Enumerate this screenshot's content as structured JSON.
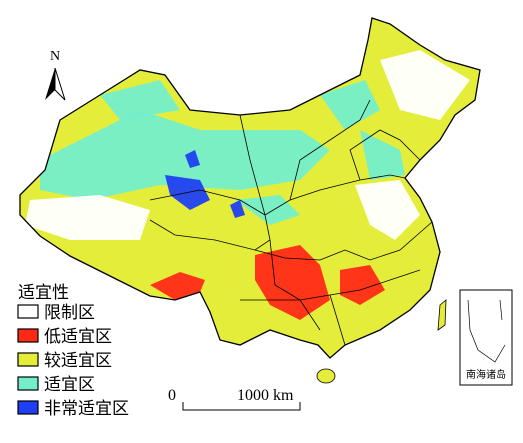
{
  "north_arrow": "N",
  "legend": {
    "title": "适宜性",
    "items": [
      {
        "label": "限制区",
        "color": "#ffffff"
      },
      {
        "label": "低适宜区",
        "color": "#ff2a16"
      },
      {
        "label": "较适宜区",
        "color": "#e4ee3a"
      },
      {
        "label": "适宜区",
        "color": "#74eecb"
      },
      {
        "label": "非常适宜区",
        "color": "#1f3ff2"
      }
    ]
  },
  "scale_bar": {
    "start": "0",
    "end": "1000 km"
  },
  "inset": {
    "label": "南海诸岛"
  }
}
